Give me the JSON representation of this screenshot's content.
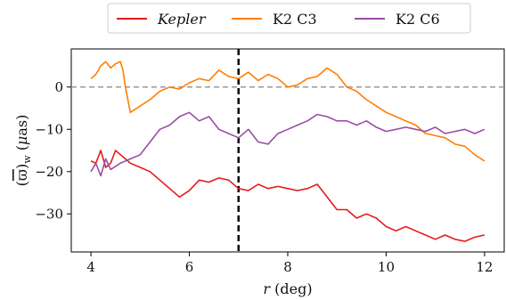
{
  "chart_data": {
    "type": "line",
    "xlabel": "r (deg)",
    "ylabel": "(ϖ̄)w (μas)",
    "xlim": [
      3.6,
      12.4
    ],
    "ylim": [
      -39,
      9
    ],
    "xticks": [
      4,
      6,
      8,
      10,
      12
    ],
    "yticks": [
      0,
      -10,
      -20,
      -30
    ],
    "xtick_labels": [
      "4",
      "6",
      "8",
      "10",
      "12"
    ],
    "ytick_labels": [
      "0",
      "−10",
      "−20",
      "−30"
    ],
    "legend_position": "top-center, outside plot",
    "reference_lines": [
      {
        "orientation": "horizontal",
        "y": 0,
        "style": "dashed",
        "color": "#999999"
      },
      {
        "orientation": "vertical",
        "x": 7,
        "style": "dashed",
        "color": "#000000"
      }
    ],
    "series": [
      {
        "name": "Kepler",
        "color": "#e41a1c",
        "points": [
          [
            4.0,
            -17.5
          ],
          [
            4.1,
            -18
          ],
          [
            4.2,
            -15
          ],
          [
            4.3,
            -19
          ],
          [
            4.4,
            -18
          ],
          [
            4.5,
            -15
          ],
          [
            4.6,
            -16
          ],
          [
            4.7,
            -17
          ],
          [
            4.8,
            -18
          ],
          [
            5.0,
            -19
          ],
          [
            5.2,
            -20
          ],
          [
            5.4,
            -22
          ],
          [
            5.6,
            -24
          ],
          [
            5.8,
            -26
          ],
          [
            6.0,
            -24.5
          ],
          [
            6.2,
            -22
          ],
          [
            6.4,
            -22.5
          ],
          [
            6.6,
            -21.5
          ],
          [
            6.8,
            -22
          ],
          [
            7.0,
            -24
          ],
          [
            7.2,
            -24.5
          ],
          [
            7.4,
            -23
          ],
          [
            7.6,
            -24
          ],
          [
            7.8,
            -23.5
          ],
          [
            8.0,
            -24
          ],
          [
            8.2,
            -24.5
          ],
          [
            8.4,
            -24
          ],
          [
            8.6,
            -23
          ],
          [
            8.8,
            -26
          ],
          [
            9.0,
            -29
          ],
          [
            9.2,
            -29
          ],
          [
            9.4,
            -31
          ],
          [
            9.6,
            -30
          ],
          [
            9.8,
            -31
          ],
          [
            10.0,
            -33
          ],
          [
            10.2,
            -34
          ],
          [
            10.4,
            -33
          ],
          [
            10.6,
            -34
          ],
          [
            10.8,
            -35
          ],
          [
            11.0,
            -36
          ],
          [
            11.2,
            -35
          ],
          [
            11.4,
            -36
          ],
          [
            11.6,
            -36.5
          ],
          [
            11.8,
            -35.5
          ],
          [
            12.0,
            -35
          ]
        ]
      },
      {
        "name": "K2 C3",
        "color": "#ff7f00",
        "points": [
          [
            4.0,
            2
          ],
          [
            4.1,
            3
          ],
          [
            4.2,
            5
          ],
          [
            4.3,
            6
          ],
          [
            4.4,
            4.5
          ],
          [
            4.5,
            5.5
          ],
          [
            4.6,
            6
          ],
          [
            4.65,
            4
          ],
          [
            4.7,
            0
          ],
          [
            4.8,
            -6
          ],
          [
            5.0,
            -4.5
          ],
          [
            5.2,
            -3
          ],
          [
            5.4,
            -1
          ],
          [
            5.6,
            0
          ],
          [
            5.8,
            -0.5
          ],
          [
            6.0,
            1
          ],
          [
            6.2,
            2
          ],
          [
            6.4,
            1.5
          ],
          [
            6.6,
            4
          ],
          [
            6.8,
            2.5
          ],
          [
            7.0,
            2
          ],
          [
            7.2,
            3.5
          ],
          [
            7.4,
            1.5
          ],
          [
            7.6,
            3
          ],
          [
            7.8,
            2
          ],
          [
            8.0,
            0
          ],
          [
            8.2,
            0.5
          ],
          [
            8.4,
            2
          ],
          [
            8.6,
            2.5
          ],
          [
            8.8,
            4.5
          ],
          [
            9.0,
            3
          ],
          [
            9.2,
            0
          ],
          [
            9.4,
            -1
          ],
          [
            9.6,
            -3
          ],
          [
            9.8,
            -4.5
          ],
          [
            10.0,
            -6
          ],
          [
            10.2,
            -7
          ],
          [
            10.4,
            -8
          ],
          [
            10.6,
            -9
          ],
          [
            10.8,
            -11
          ],
          [
            11.0,
            -11.5
          ],
          [
            11.2,
            -12
          ],
          [
            11.4,
            -13.5
          ],
          [
            11.6,
            -14
          ],
          [
            11.8,
            -16
          ],
          [
            12.0,
            -17.5
          ]
        ]
      },
      {
        "name": "K2 C6",
        "color": "#984ea3",
        "points": [
          [
            4.0,
            -20
          ],
          [
            4.1,
            -18
          ],
          [
            4.2,
            -21
          ],
          [
            4.3,
            -17
          ],
          [
            4.4,
            -19.5
          ],
          [
            4.6,
            -18
          ],
          [
            4.8,
            -17
          ],
          [
            5.0,
            -16
          ],
          [
            5.2,
            -13
          ],
          [
            5.4,
            -10
          ],
          [
            5.6,
            -9
          ],
          [
            5.8,
            -7
          ],
          [
            6.0,
            -6
          ],
          [
            6.2,
            -8
          ],
          [
            6.4,
            -7
          ],
          [
            6.6,
            -10
          ],
          [
            6.8,
            -11
          ],
          [
            7.0,
            -12
          ],
          [
            7.2,
            -10
          ],
          [
            7.4,
            -13
          ],
          [
            7.6,
            -13.5
          ],
          [
            7.8,
            -11
          ],
          [
            8.0,
            -10
          ],
          [
            8.2,
            -9
          ],
          [
            8.4,
            -8
          ],
          [
            8.6,
            -6.5
          ],
          [
            8.8,
            -7
          ],
          [
            9.0,
            -8
          ],
          [
            9.2,
            -8
          ],
          [
            9.4,
            -9
          ],
          [
            9.6,
            -8
          ],
          [
            9.8,
            -9.5
          ],
          [
            10.0,
            -10.5
          ],
          [
            10.2,
            -10
          ],
          [
            10.4,
            -9.5
          ],
          [
            10.6,
            -10
          ],
          [
            10.8,
            -10.5
          ],
          [
            11.0,
            -9.5
          ],
          [
            11.2,
            -11
          ],
          [
            11.4,
            -10.5
          ],
          [
            11.6,
            -10
          ],
          [
            11.8,
            -11
          ],
          [
            12.0,
            -10
          ]
        ]
      }
    ]
  }
}
